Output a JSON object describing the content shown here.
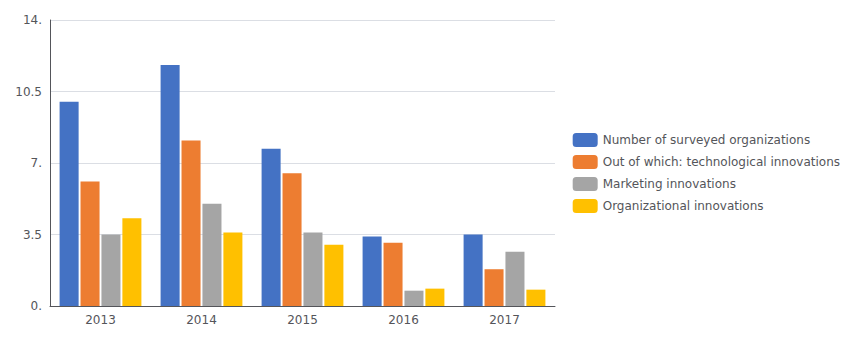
{
  "chart_data": {
    "type": "bar",
    "categories": [
      "2013",
      "2014",
      "2015",
      "2016",
      "2017"
    ],
    "series": [
      {
        "name": "Number of surveyed organizations",
        "color": "#4472C4",
        "values": [
          10.0,
          11.8,
          7.7,
          3.4,
          3.5
        ]
      },
      {
        "name": "Out of which: technological innovations",
        "color": "#ED7D31",
        "values": [
          6.1,
          8.1,
          6.5,
          3.1,
          1.8
        ]
      },
      {
        "name": "Marketing innovations",
        "color": "#A5A5A5",
        "values": [
          3.5,
          5.0,
          3.6,
          0.75,
          2.65
        ]
      },
      {
        "name": "Organizational innovations",
        "color": "#FFC000",
        "values": [
          4.3,
          3.6,
          3.0,
          0.85,
          0.8
        ]
      }
    ],
    "ylim": [
      0,
      14
    ],
    "yticks": [
      {
        "value": 0,
        "label": "0."
      },
      3.5,
      {
        "value": 7.0,
        "label": "7."
      },
      10.5,
      {
        "value": 14.0,
        "label": "14."
      }
    ],
    "grid": true,
    "legend": "right"
  }
}
